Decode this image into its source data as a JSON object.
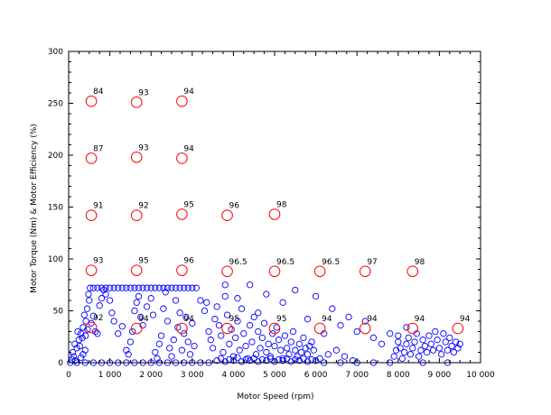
{
  "chart_data": {
    "type": "scatter",
    "title": "",
    "xlabel": "Motor Speed (rpm)",
    "ylabel": "Motor Torque (Nm) & Motor Efficiency (%)",
    "xlim": [
      0,
      10000
    ],
    "ylim": [
      0,
      300
    ],
    "x_ticks": [
      0,
      1000,
      2000,
      3000,
      4000,
      5000,
      6000,
      7000,
      8000,
      9000,
      10000
    ],
    "x_tick_labels": [
      "0",
      "1 000",
      "2 000",
      "3 000",
      "4 000",
      "5 000",
      "6 000",
      "7 000",
      "8 000",
      "9 000",
      "10 000"
    ],
    "y_ticks": [
      0,
      50,
      100,
      150,
      200,
      250,
      300
    ],
    "y_tick_labels": [
      "0",
      "50",
      "100",
      "150",
      "200",
      "250",
      "300"
    ],
    "grid": false,
    "legend": "none",
    "colors": {
      "operating_points": "#0000ff",
      "efficiency_points": "#ff0000"
    },
    "series": [
      {
        "marker": "circle-small",
        "note": "operating-point cloud (estimated representative sample)",
        "points": [
          [
            40,
            0
          ],
          [
            80,
            3
          ],
          [
            120,
            6
          ],
          [
            160,
            2
          ],
          [
            100,
            10
          ],
          [
            200,
            14
          ],
          [
            150,
            18
          ],
          [
            250,
            22
          ],
          [
            300,
            28
          ],
          [
            220,
            30
          ],
          [
            350,
            34
          ],
          [
            420,
            40
          ],
          [
            380,
            46
          ],
          [
            450,
            52
          ],
          [
            500,
            60
          ],
          [
            480,
            66
          ],
          [
            520,
            72
          ],
          [
            300,
            5
          ],
          [
            350,
            8
          ],
          [
            400,
            12
          ],
          [
            270,
            16
          ],
          [
            330,
            24
          ],
          [
            460,
            32
          ],
          [
            410,
            26
          ],
          [
            550,
            38
          ],
          [
            600,
            45
          ],
          [
            650,
            30
          ],
          [
            700,
            28
          ],
          [
            750,
            55
          ],
          [
            800,
            62
          ],
          [
            850,
            70
          ],
          [
            600,
            72
          ],
          [
            700,
            72
          ],
          [
            800,
            72
          ],
          [
            900,
            72
          ],
          [
            1000,
            72
          ],
          [
            1100,
            72
          ],
          [
            1200,
            72
          ],
          [
            1300,
            72
          ],
          [
            1400,
            72
          ],
          [
            1500,
            72
          ],
          [
            1600,
            72
          ],
          [
            1700,
            72
          ],
          [
            1800,
            72
          ],
          [
            1900,
            72
          ],
          [
            2000,
            72
          ],
          [
            2100,
            72
          ],
          [
            2200,
            72
          ],
          [
            2300,
            72
          ],
          [
            2400,
            72
          ],
          [
            2500,
            72
          ],
          [
            2600,
            72
          ],
          [
            2700,
            72
          ],
          [
            2800,
            72
          ],
          [
            2900,
            72
          ],
          [
            3000,
            72
          ],
          [
            3100,
            72
          ],
          [
            900,
            66
          ],
          [
            1000,
            60
          ],
          [
            1050,
            48
          ],
          [
            1100,
            40
          ],
          [
            1200,
            28
          ],
          [
            1300,
            35
          ],
          [
            1400,
            12
          ],
          [
            1450,
            8
          ],
          [
            1500,
            20
          ],
          [
            1550,
            30
          ],
          [
            1600,
            50
          ],
          [
            1650,
            58
          ],
          [
            1700,
            64
          ],
          [
            1750,
            44
          ],
          [
            1800,
            36
          ],
          [
            1900,
            54
          ],
          [
            2000,
            62
          ],
          [
            2050,
            46
          ],
          [
            2100,
            10
          ],
          [
            2150,
            4
          ],
          [
            2200,
            18
          ],
          [
            2250,
            26
          ],
          [
            2300,
            52
          ],
          [
            2350,
            68
          ],
          [
            2400,
            40
          ],
          [
            2450,
            14
          ],
          [
            2500,
            6
          ],
          [
            2550,
            22
          ],
          [
            2600,
            60
          ],
          [
            2650,
            34
          ],
          [
            2700,
            48
          ],
          [
            2750,
            12
          ],
          [
            2800,
            28
          ],
          [
            2850,
            44
          ],
          [
            2900,
            20
          ],
          [
            2950,
            8
          ],
          [
            3000,
            38
          ],
          [
            3050,
            16
          ],
          [
            3200,
            60
          ],
          [
            3300,
            50
          ],
          [
            3350,
            58
          ],
          [
            3400,
            30
          ],
          [
            3450,
            22
          ],
          [
            3500,
            14
          ],
          [
            3550,
            42
          ],
          [
            3600,
            54
          ],
          [
            3650,
            36
          ],
          [
            3700,
            26
          ],
          [
            3750,
            10
          ],
          [
            3800,
            64
          ],
          [
            3850,
            46
          ],
          [
            3900,
            18
          ],
          [
            3950,
            32
          ],
          [
            4000,
            6
          ],
          [
            4050,
            24
          ],
          [
            4100,
            40
          ],
          [
            4150,
            12
          ],
          [
            4200,
            52
          ],
          [
            4250,
            28
          ],
          [
            4300,
            16
          ],
          [
            4350,
            4
          ],
          [
            4400,
            36
          ],
          [
            4450,
            20
          ],
          [
            4500,
            44
          ],
          [
            4550,
            8
          ],
          [
            4600,
            30
          ],
          [
            4650,
            14
          ],
          [
            4700,
            24
          ],
          [
            4750,
            38
          ],
          [
            4800,
            10
          ],
          [
            4850,
            18
          ],
          [
            4900,
            6
          ],
          [
            4950,
            28
          ],
          [
            5000,
            16
          ],
          [
            5050,
            34
          ],
          [
            5100,
            22
          ],
          [
            5150,
            12
          ],
          [
            5200,
            4
          ],
          [
            5250,
            26
          ],
          [
            5300,
            14
          ],
          [
            5350,
            8
          ],
          [
            5400,
            20
          ],
          [
            5450,
            30
          ],
          [
            5500,
            12
          ],
          [
            5550,
            6
          ],
          [
            5600,
            18
          ],
          [
            5650,
            10
          ],
          [
            5700,
            24
          ],
          [
            5750,
            14
          ],
          [
            5800,
            8
          ],
          [
            5850,
            16
          ],
          [
            5900,
            20
          ],
          [
            5950,
            12
          ],
          [
            3800,
            75
          ],
          [
            4100,
            62
          ],
          [
            4400,
            75
          ],
          [
            4600,
            48
          ],
          [
            4800,
            66
          ],
          [
            5200,
            58
          ],
          [
            5500,
            70
          ],
          [
            5800,
            42
          ],
          [
            6000,
            64
          ],
          [
            6200,
            28
          ],
          [
            6400,
            52
          ],
          [
            6600,
            36
          ],
          [
            6800,
            44
          ],
          [
            7000,
            30
          ],
          [
            7200,
            40
          ],
          [
            7400,
            24
          ],
          [
            7600,
            18
          ],
          [
            7800,
            28
          ],
          [
            8000,
            26
          ],
          [
            8200,
            34
          ],
          [
            3600,
            2
          ],
          [
            3700,
            4
          ],
          [
            3800,
            1
          ],
          [
            3900,
            3
          ],
          [
            4000,
            2
          ],
          [
            4100,
            5
          ],
          [
            4200,
            1
          ],
          [
            4300,
            3
          ],
          [
            4400,
            2
          ],
          [
            4500,
            4
          ],
          [
            4600,
            1
          ],
          [
            4700,
            3
          ],
          [
            4800,
            2
          ],
          [
            4900,
            4
          ],
          [
            5000,
            1
          ],
          [
            5100,
            3
          ],
          [
            5200,
            2
          ],
          [
            5300,
            4
          ],
          [
            5400,
            1
          ],
          [
            5500,
            3
          ],
          [
            5600,
            2
          ],
          [
            5700,
            4
          ],
          [
            5800,
            1
          ],
          [
            5900,
            3
          ],
          [
            6000,
            2
          ],
          [
            6100,
            4
          ],
          [
            6300,
            8
          ],
          [
            6500,
            12
          ],
          [
            6700,
            6
          ],
          [
            6900,
            2
          ],
          [
            7900,
            6
          ],
          [
            7950,
            12
          ],
          [
            8000,
            20
          ],
          [
            8050,
            14
          ],
          [
            8100,
            4
          ],
          [
            8150,
            10
          ],
          [
            8200,
            18
          ],
          [
            8250,
            24
          ],
          [
            8300,
            8
          ],
          [
            8350,
            14
          ],
          [
            8400,
            20
          ],
          [
            8450,
            28
          ],
          [
            8500,
            6
          ],
          [
            8550,
            12
          ],
          [
            8600,
            22
          ],
          [
            8650,
            16
          ],
          [
            8700,
            10
          ],
          [
            8750,
            26
          ],
          [
            8800,
            18
          ],
          [
            8850,
            12
          ],
          [
            8900,
            30
          ],
          [
            8950,
            22
          ],
          [
            9000,
            14
          ],
          [
            9050,
            8
          ],
          [
            9100,
            28
          ],
          [
            9150,
            20
          ],
          [
            9200,
            12
          ],
          [
            9250,
            24
          ],
          [
            9300,
            16
          ],
          [
            9350,
            10
          ],
          [
            9400,
            20
          ],
          [
            9450,
            14
          ],
          [
            9500,
            18
          ],
          [
            200,
            0
          ],
          [
            400,
            0
          ],
          [
            600,
            0
          ],
          [
            800,
            0
          ],
          [
            1000,
            0
          ],
          [
            1200,
            0
          ],
          [
            1400,
            0
          ],
          [
            1600,
            0
          ],
          [
            1800,
            0
          ],
          [
            2000,
            0
          ],
          [
            2200,
            0
          ],
          [
            2400,
            0
          ],
          [
            2600,
            0
          ],
          [
            2800,
            0
          ],
          [
            3000,
            0
          ],
          [
            3200,
            0
          ],
          [
            3400,
            0
          ],
          [
            6200,
            0
          ],
          [
            6600,
            0
          ],
          [
            7000,
            0
          ],
          [
            7400,
            0
          ],
          [
            7800,
            0
          ],
          [
            8600,
            0
          ],
          [
            9200,
            0
          ]
        ]
      },
      {
        "marker": "circle-large",
        "note": "efficiency map points (x rpm, y Nm) with efficiency labels",
        "points": [
          {
            "x": 550,
            "y": 252,
            "label": "84"
          },
          {
            "x": 1650,
            "y": 251,
            "label": "93"
          },
          {
            "x": 2750,
            "y": 252,
            "label": "94"
          },
          {
            "x": 550,
            "y": 197,
            "label": "87"
          },
          {
            "x": 1650,
            "y": 198,
            "label": "93"
          },
          {
            "x": 2750,
            "y": 197,
            "label": "94"
          },
          {
            "x": 550,
            "y": 142,
            "label": "91"
          },
          {
            "x": 1650,
            "y": 142,
            "label": "92"
          },
          {
            "x": 2750,
            "y": 143,
            "label": "95"
          },
          {
            "x": 3850,
            "y": 142,
            "label": "96"
          },
          {
            "x": 5000,
            "y": 143,
            "label": "98"
          },
          {
            "x": 550,
            "y": 89,
            "label": "93"
          },
          {
            "x": 1650,
            "y": 89,
            "label": "95"
          },
          {
            "x": 2750,
            "y": 89,
            "label": "96"
          },
          {
            "x": 3850,
            "y": 88,
            "label": "96.5"
          },
          {
            "x": 5000,
            "y": 88,
            "label": "96.5"
          },
          {
            "x": 6100,
            "y": 88,
            "label": "96.5"
          },
          {
            "x": 7200,
            "y": 88,
            "label": "97"
          },
          {
            "x": 8350,
            "y": 88,
            "label": "98"
          },
          {
            "x": 550,
            "y": 34,
            "label": "92"
          },
          {
            "x": 1650,
            "y": 33,
            "label": "94"
          },
          {
            "x": 2750,
            "y": 33,
            "label": "94"
          },
          {
            "x": 3850,
            "y": 33,
            "label": "95"
          },
          {
            "x": 5000,
            "y": 33,
            "label": "95"
          },
          {
            "x": 6100,
            "y": 33,
            "label": "94"
          },
          {
            "x": 7200,
            "y": 33,
            "label": "94"
          },
          {
            "x": 8350,
            "y": 33,
            "label": "94"
          },
          {
            "x": 9450,
            "y": 33,
            "label": "94"
          }
        ]
      }
    ]
  }
}
